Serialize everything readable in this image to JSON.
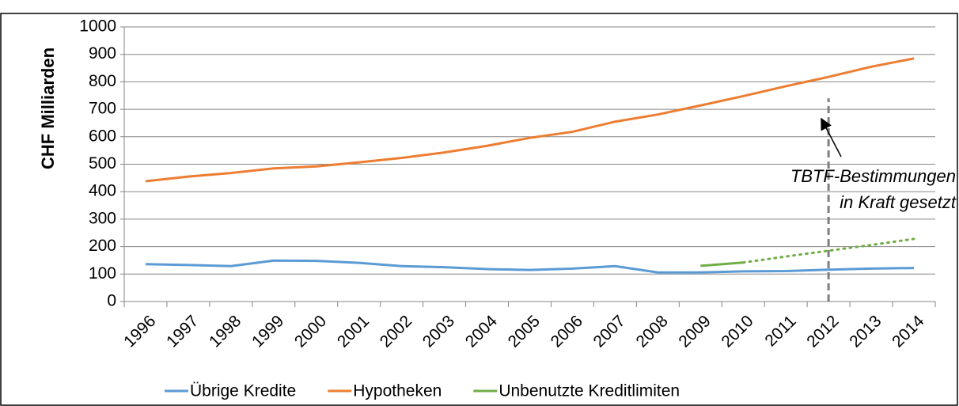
{
  "chart_data": {
    "type": "line",
    "ylabel": "CHF Milliarden",
    "categories": [
      "1996",
      "1997",
      "1998",
      "1999",
      "2000",
      "2001",
      "2002",
      "2003",
      "2004",
      "2005",
      "2006",
      "2007",
      "2008",
      "2009",
      "2010",
      "2011",
      "2012",
      "2013",
      "2014"
    ],
    "series": [
      {
        "name": "Übrige Kredite",
        "color": "#5b9bd5",
        "values": [
          136,
          133,
          129,
          149,
          148,
          141,
          129,
          125,
          118,
          115,
          120,
          129,
          106,
          106,
          110,
          111,
          116,
          120,
          122
        ]
      },
      {
        "name": "Hypotheken",
        "color": "#ed7d31",
        "values": [
          438,
          455,
          468,
          485,
          492,
          507,
          523,
          543,
          567,
          596,
          618,
          655,
          681,
          714,
          748,
          784,
          818,
          855,
          885
        ]
      },
      {
        "name": "Unbenutzte Kreditlimiten",
        "color": "#70ad47",
        "values": [
          null,
          null,
          null,
          null,
          null,
          null,
          null,
          null,
          null,
          null,
          null,
          null,
          null,
          130,
          142,
          null,
          null,
          null,
          null
        ]
      },
      {
        "color": "#70ad47",
        "dash": "dotted",
        "values": [
          null,
          null,
          null,
          null,
          null,
          null,
          null,
          null,
          null,
          null,
          null,
          null,
          null,
          null,
          142,
          164,
          185,
          206,
          228
        ]
      }
    ],
    "ylim": [
      0,
      1000
    ],
    "yticks": [
      0,
      100,
      200,
      300,
      400,
      500,
      600,
      700,
      800,
      900,
      1000
    ],
    "grid": true,
    "vline": "2012",
    "annotation": [
      "TBTF-Bestimmungen",
      "in Kraft gesetzt"
    ]
  }
}
